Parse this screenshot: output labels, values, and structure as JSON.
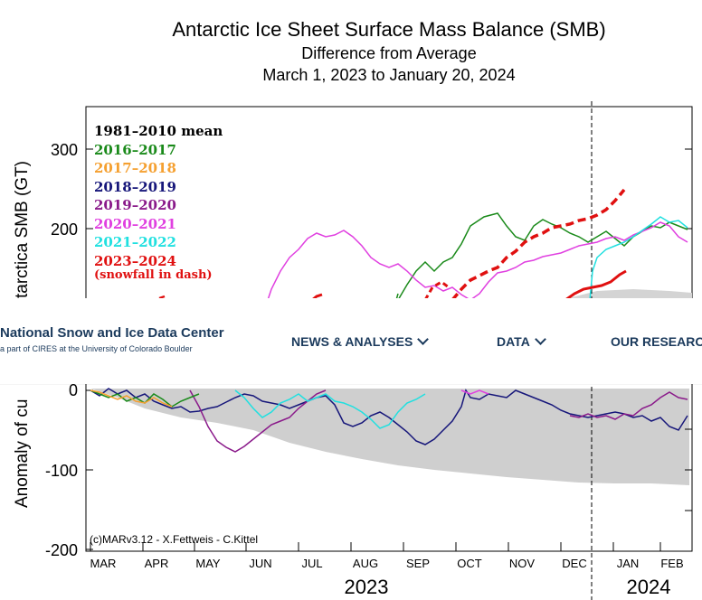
{
  "chart_data": {
    "type": "line",
    "title": "Antarctic Ice Sheet Surface Mass Balance (SMB)",
    "subtitle_1": "Difference from Average",
    "subtitle_2": "March 1, 2023 to January 20, 2024",
    "ylabel_top": "tarctica SMB (GT)",
    "ylabel_bottom": "Anomaly of cu",
    "y_ticks": [
      "300",
      "200",
      "0",
      "-100",
      "-200"
    ],
    "x_months": [
      "MAR",
      "APR",
      "MAY",
      "JUN",
      "JUL",
      "AUG",
      "SEP",
      "OCT",
      "NOV",
      "DEC",
      "JAN",
      "FEB"
    ],
    "x_years": [
      "2023",
      "2024"
    ],
    "credit": "(c)MARv3.12 - X.Fettweis - C.Kittel",
    "legend": [
      {
        "label": "1981–2010 mean",
        "color": "#000000"
      },
      {
        "label": "2016–2017",
        "color": "#1a8a1a"
      },
      {
        "label": "2017–2018",
        "color": "#f5a030"
      },
      {
        "label": "2018–2019",
        "color": "#16167a"
      },
      {
        "label": "2019–2020",
        "color": "#8a1a8a"
      },
      {
        "label": "2020–2021",
        "color": "#e040e0"
      },
      {
        "label": "2021–2022",
        "color": "#20e0e0"
      },
      {
        "label": "2023–2024",
        "color": "#e01010"
      }
    ],
    "legend_note": "(snowfall in dash)",
    "grid": false,
    "legend_placement": "top-left"
  },
  "header": {
    "brand_name": "National Snow and Ice Data Center",
    "brand_sub": "a part of CIRES at the University of Colorado Boulder",
    "nav": [
      "NEWS & ANALYSES",
      "DATA",
      "OUR RESEARCH"
    ]
  }
}
